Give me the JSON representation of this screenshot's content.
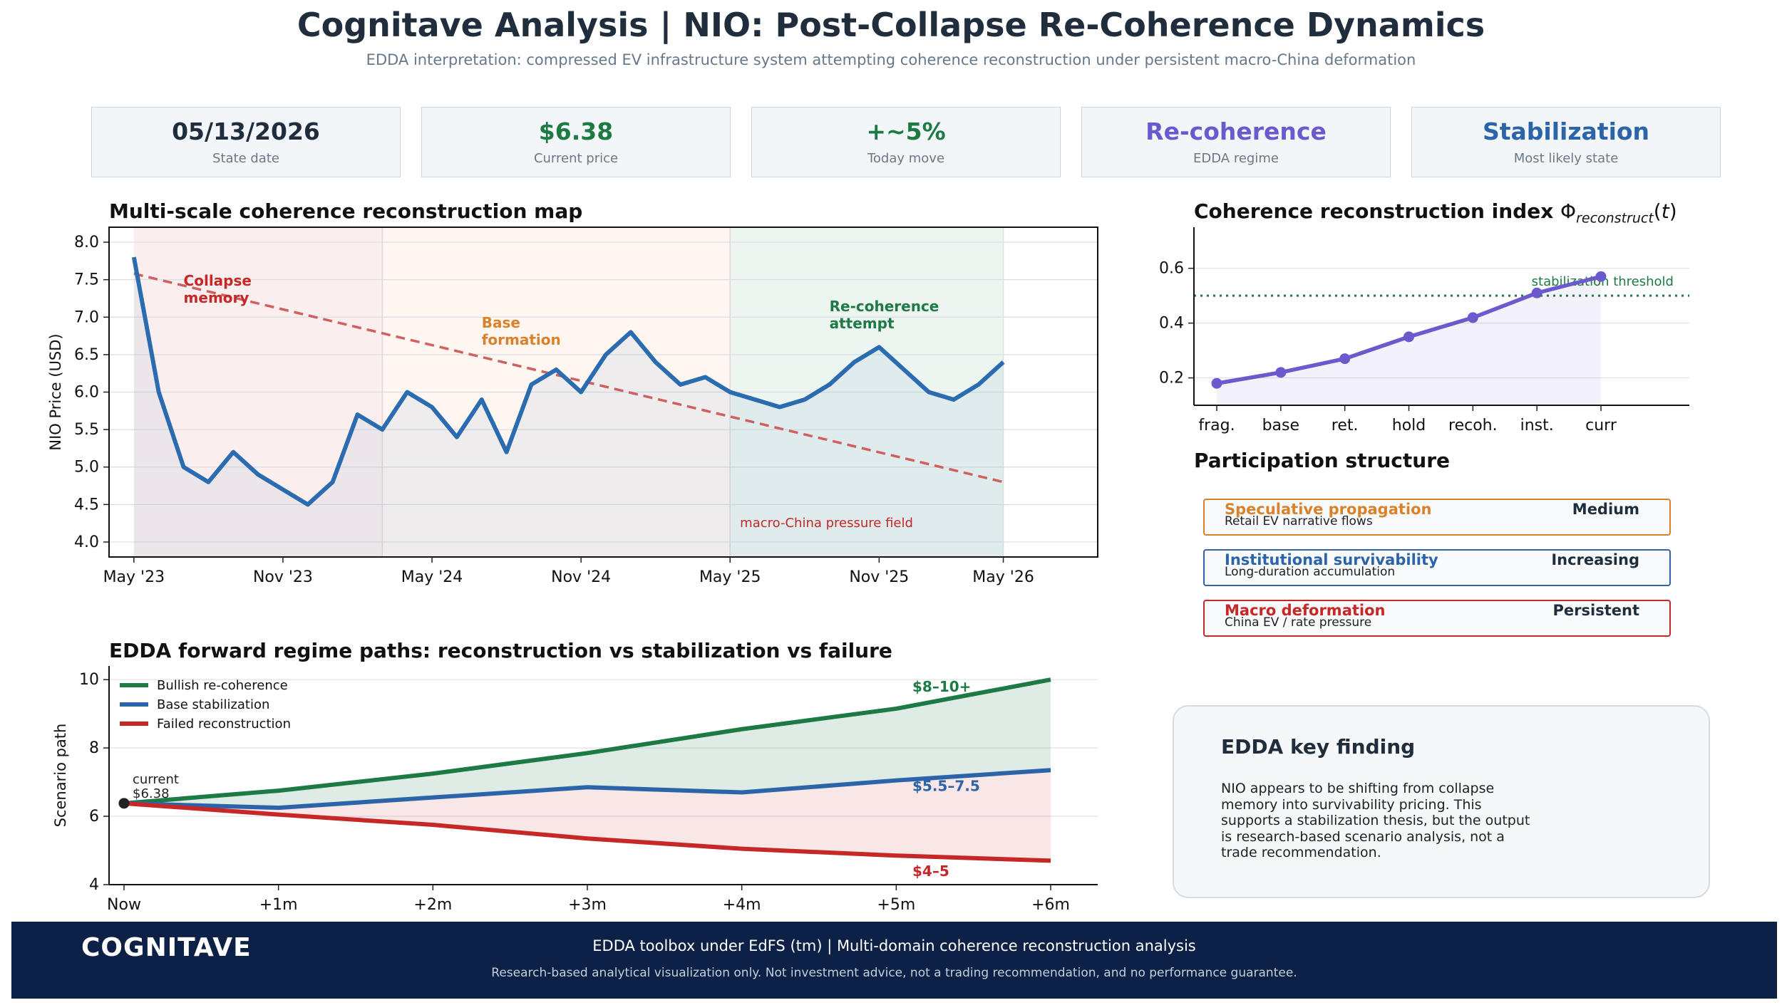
{
  "header": {
    "title": "Cognitave Analysis | NIO: Post-Collapse Re-Coherence Dynamics",
    "subtitle": "EDDA interpretation: compressed EV infrastructure system attempting coherence reconstruction under persistent macro-China deformation"
  },
  "cards": [
    {
      "value": "05/13/2026",
      "label": "State date",
      "color": "#1f2d3d"
    },
    {
      "value": "$6.38",
      "label": "Current price",
      "color": "#1e7a45"
    },
    {
      "value": "+~5%",
      "label": "Today move",
      "color": "#1e7a45"
    },
    {
      "value": "Re-coherence",
      "label": "EDDA regime",
      "color": "#6a5acd"
    },
    {
      "value": "Stabilization",
      "label": "Most likely state",
      "color": "#2b64a8"
    }
  ],
  "participation": {
    "title": "Participation structure",
    "items": [
      {
        "name": "Speculative propagation",
        "desc": "Retail EV narrative flows",
        "level": "Medium",
        "color": "#d9822b"
      },
      {
        "name": "Institutional survivability",
        "desc": "Long-duration accumulation",
        "level": "Increasing",
        "color": "#2b64a8"
      },
      {
        "name": "Macro deformation",
        "desc": "China EV / rate pressure",
        "level": "Persistent",
        "color": "#c62828"
      }
    ]
  },
  "finding": {
    "title": "EDDA key finding",
    "body": "NIO appears to be shifting from collapse memory into survivability pricing. This supports a stabilization thesis, but the output is research-based scenario analysis, not a trade recommendation."
  },
  "footer": {
    "brand": "COGNITAVE",
    "line1": "EDDA toolbox under EdFS (tm) | Multi-domain coherence reconstruction analysis",
    "line2": "Research-based analytical visualization only. Not investment advice, not a trading recommendation, and no performance guarantee."
  },
  "chart_data": [
    {
      "id": "price",
      "type": "line",
      "title": "Multi-scale coherence reconstruction map",
      "ylabel": "NIO Price (USD)",
      "ylim": [
        3.8,
        8.2
      ],
      "yticks": [
        4.0,
        4.5,
        5.0,
        5.5,
        6.0,
        6.5,
        7.0,
        7.5,
        8.0
      ],
      "xlim": [
        -1.0,
        38.8
      ],
      "x_ticks": [
        {
          "x": 0,
          "label": "May '23"
        },
        {
          "x": 6,
          "label": "Nov '23"
        },
        {
          "x": 12,
          "label": "May '24"
        },
        {
          "x": 18,
          "label": "Nov '24"
        },
        {
          "x": 24,
          "label": "May '25"
        },
        {
          "x": 30,
          "label": "Nov '25"
        },
        {
          "x": 35,
          "label": "May '26"
        }
      ],
      "series": [
        {
          "x": [
            0,
            1,
            2,
            3,
            4,
            5,
            6,
            7,
            8,
            9,
            10,
            11,
            12,
            13,
            14,
            15,
            16,
            17,
            18,
            19,
            20,
            21,
            22,
            23,
            24,
            25,
            26,
            27,
            28,
            29,
            30,
            31,
            32,
            33,
            34,
            35
          ],
          "values": [
            7.8,
            6.0,
            5.0,
            4.8,
            5.2,
            4.9,
            4.7,
            4.5,
            4.8,
            5.7,
            5.5,
            6.0,
            5.8,
            5.4,
            5.9,
            5.2,
            6.1,
            6.3,
            6.0,
            6.5,
            6.8,
            6.4,
            6.1,
            6.2,
            6.0,
            5.9,
            5.8,
            5.9,
            6.1,
            6.4,
            6.6,
            6.3,
            6.0,
            5.9,
            6.1,
            6.4
          ],
          "color": "#2b6cb0"
        }
      ],
      "trend": {
        "from": [
          0,
          7.58
        ],
        "to": [
          35,
          4.8
        ],
        "color": "#d06060"
      },
      "regimes": [
        {
          "label": "Collapse\nmemory",
          "x0": 0,
          "x1": 10,
          "color": "#c62828",
          "fill": "#fbeeee",
          "label_at": [
            2,
            7.42
          ]
        },
        {
          "label": "Base\nformation",
          "x0": 10,
          "x1": 24,
          "color": "#d9822b",
          "fill": "#fdf6f1",
          "label_at": [
            14,
            6.86
          ]
        },
        {
          "label": "Re-coherence\nattempt",
          "x0": 24,
          "x1": 35,
          "color": "#1e7a45",
          "fill": "#edf5f1",
          "label_at": [
            28,
            7.08
          ]
        }
      ],
      "annotation": {
        "text": "macro-China pressure field",
        "at": [
          24.4,
          4.2
        ],
        "color": "#c62828"
      }
    },
    {
      "id": "index",
      "type": "line",
      "title": "Coherence reconstruction index",
      "categories": [
        "frag.",
        "base",
        "ret.",
        "hold",
        "recoh.",
        "inst.",
        "curr"
      ],
      "values": [
        0.18,
        0.22,
        0.27,
        0.35,
        0.42,
        0.51,
        0.57
      ],
      "ylim": [
        0.1,
        0.75
      ],
      "yticks": [
        0.2,
        0.4,
        0.6
      ],
      "threshold": {
        "value": 0.5,
        "label": "stabilization threshold",
        "color": "#1e7a45"
      },
      "color": "#6a5acd"
    },
    {
      "id": "paths",
      "type": "line",
      "title": "EDDA forward regime paths: reconstruction vs stabilization vs failure",
      "ylabel": "Scenario path",
      "categories": [
        "Now",
        "+1m",
        "+2m",
        "+3m",
        "+4m",
        "+5m",
        "+6m"
      ],
      "ylim": [
        4,
        10.4
      ],
      "yticks": [
        4,
        6,
        8,
        10
      ],
      "series": [
        {
          "name": "Bullish re-coherence",
          "values": [
            6.38,
            6.75,
            7.25,
            7.85,
            8.55,
            9.15,
            10.0
          ],
          "color": "#1e7a45",
          "label": "$8–10+"
        },
        {
          "name": "Base stabilization",
          "values": [
            6.38,
            6.25,
            6.55,
            6.85,
            6.7,
            7.05,
            7.35
          ],
          "color": "#2b64a8",
          "label": "$5.5–7.5"
        },
        {
          "name": "Failed reconstruction",
          "values": [
            6.38,
            6.05,
            5.75,
            5.35,
            5.05,
            4.85,
            4.7
          ],
          "color": "#c62828",
          "label": "$4–5"
        }
      ],
      "current": {
        "label": "current",
        "value_label": "$6.38",
        "value": 6.38
      }
    }
  ]
}
